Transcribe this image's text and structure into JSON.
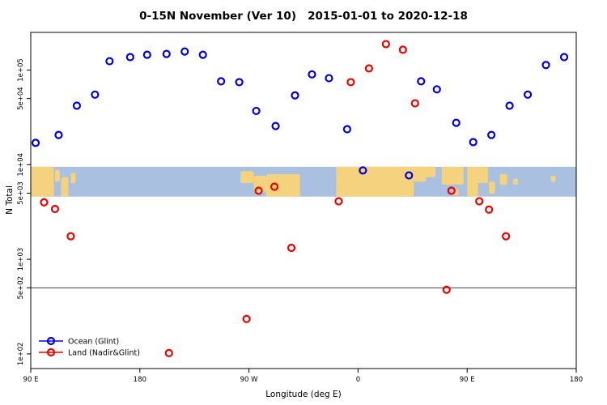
{
  "title": "0-15N November (Ver 10)   2015-01-01 to 2020-12-18",
  "chart_data": {
    "type": "scatter",
    "title": "0-15N November (Ver 10)   2015-01-01 to 2020-12-18",
    "xlabel": "Longitude (deg E)",
    "ylabel": "N Total",
    "x_encoding": "longitude unwrapped eastward from 90E: 90=90E, 180=180, 270=90W, 360=0, 450=90E, 540=180",
    "x_axis": {
      "domain": [
        90,
        540
      ],
      "ticks": [
        {
          "value": 90,
          "label": "90 E"
        },
        {
          "value": 180,
          "label": "180"
        },
        {
          "value": 270,
          "label": "90 W"
        },
        {
          "value": 360,
          "label": "0"
        },
        {
          "value": 450,
          "label": "90 E"
        },
        {
          "value": 540,
          "label": "180"
        }
      ]
    },
    "y_axis": {
      "scale": "log",
      "domain": [
        70,
        250000
      ],
      "ticks": [
        {
          "value": 100000,
          "label": "1e+05"
        },
        {
          "value": 50000,
          "label": "5e+04"
        },
        {
          "value": 10000,
          "label": "1e+04"
        },
        {
          "value": 5000,
          "label": "5e+03"
        },
        {
          "value": 1000,
          "label": "1e+03"
        },
        {
          "value": 500,
          "label": "5e+02"
        },
        {
          "value": 100,
          "label": "1e+02"
        }
      ]
    },
    "reference_line_y": 500,
    "map_band": {
      "top_value": 9500,
      "bottom_value": 4600,
      "ocean_color": "#a9c0e0",
      "land_color": "#f5d27d",
      "land_segments": [
        [
          90,
          109,
          0,
          1
        ],
        [
          110,
          114,
          0.1,
          0.5
        ],
        [
          115,
          121,
          0.35,
          1
        ],
        [
          123,
          127,
          0.2,
          0.55
        ],
        [
          263,
          274,
          0.15,
          0.55
        ],
        [
          274,
          284,
          0.3,
          0.85
        ],
        [
          284,
          312,
          0.25,
          1
        ],
        [
          342,
          406,
          0,
          1
        ],
        [
          406,
          416,
          0,
          0.5
        ],
        [
          394,
          424,
          0,
          0.35
        ],
        [
          429,
          447,
          0,
          0.6
        ],
        [
          438,
          443,
          0.75,
          0.95
        ],
        [
          450,
          459,
          0,
          1
        ],
        [
          459,
          467,
          0,
          0.55
        ],
        [
          468,
          473,
          0.5,
          0.9
        ],
        [
          477,
          483,
          0.25,
          0.6
        ],
        [
          488,
          492,
          0.4,
          0.6
        ],
        [
          519,
          523,
          0.3,
          0.5
        ]
      ]
    },
    "series": [
      {
        "name": "Land (Nadir&Glint)",
        "color": "#ee0000",
        "points": [
          [
            101,
            4000
          ],
          [
            110,
            3400
          ],
          [
            123,
            1750
          ],
          [
            204,
            102
          ],
          [
            268,
            234
          ],
          [
            278,
            5300
          ],
          [
            291,
            5850
          ],
          [
            305,
            1320
          ],
          [
            344,
            4100
          ],
          [
            354,
            74500
          ],
          [
            369,
            104000
          ],
          [
            383,
            188000
          ],
          [
            397,
            164000
          ],
          [
            407,
            44500
          ],
          [
            433,
            476
          ],
          [
            437,
            5300
          ],
          [
            460,
            4100
          ],
          [
            468,
            3350
          ],
          [
            482,
            1750
          ]
        ]
      },
      {
        "name": "Ocean (Glint)",
        "color": "#0000dd",
        "points": [
          [
            94,
            17000
          ],
          [
            113,
            20600
          ],
          [
            128,
            42000
          ],
          [
            143,
            55000
          ],
          [
            155,
            124000
          ],
          [
            172,
            137000
          ],
          [
            186,
            145000
          ],
          [
            202,
            148000
          ],
          [
            217,
            157000
          ],
          [
            232,
            145000
          ],
          [
            247,
            76000
          ],
          [
            262,
            74500
          ],
          [
            276,
            37000
          ],
          [
            292,
            25600
          ],
          [
            308,
            54000
          ],
          [
            322,
            90000
          ],
          [
            336,
            82000
          ],
          [
            351,
            23700
          ],
          [
            364,
            8700
          ],
          [
            402,
            7700
          ],
          [
            412,
            76000
          ],
          [
            425,
            62500
          ],
          [
            441,
            27700
          ],
          [
            455,
            17300
          ],
          [
            470,
            20600
          ],
          [
            485,
            42000
          ],
          [
            500,
            55000
          ],
          [
            515,
            113000
          ],
          [
            530,
            137000
          ]
        ]
      }
    ],
    "legend": {
      "position": "bottom-left",
      "entries": [
        "Land (Nadir&Glint)",
        "Ocean (Glint)"
      ]
    }
  }
}
